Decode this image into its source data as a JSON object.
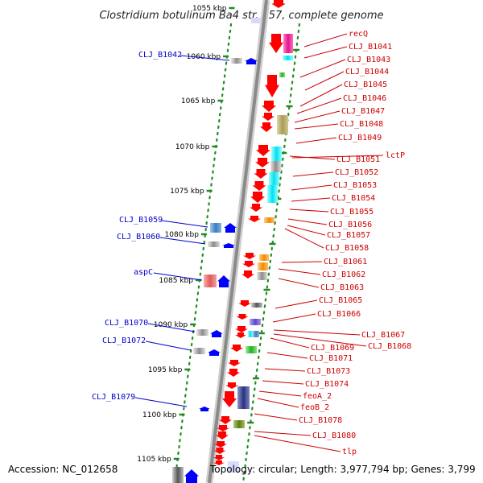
{
  "title": "Clostridium botulinum Ba4 str. 657, complete genome",
  "accession": "Accession: NC_012658",
  "topology": "Topology: circular; Length: 3,977,794 bp; Genes: 3,799",
  "kbp_ticks": [
    "1055 kbp",
    "1060 kbp",
    "1065 kbp",
    "1070 kbp",
    "1075 kbp",
    "1080 kbp",
    "1085 kbp",
    "1090 kbp",
    "1095 kbp",
    "1100 kbp",
    "1105 kbp"
  ],
  "left_labels": [
    "CLJ_B1042",
    "CLJ_B1059",
    "CLJ_B1060",
    "aspC",
    "CLJ_B1070",
    "CLJ_B1072",
    "CLJ_B1079"
  ],
  "right_labels": [
    "recQ",
    "CLJ_B1041",
    "CLJ_B1043",
    "CLJ_B1044",
    "CLJ_B1045",
    "CLJ_B1046",
    "CLJ_B1047",
    "CLJ_B1048",
    "CLJ_B1049",
    "lctP",
    "CLJ_B1051",
    "CLJ_B1052",
    "CLJ_B1053",
    "CLJ_B1054",
    "CLJ_B1055",
    "CLJ_B1056",
    "CLJ_B1057",
    "CLJ_B1058",
    "CLJ_B1061",
    "CLJ_B1062",
    "CLJ_B1063",
    "CLJ_B1065",
    "CLJ_B1066",
    "CLJ_B1067",
    "CLJ_B1068",
    "CLJ_B1069",
    "CLJ_B1071",
    "CLJ_B1073",
    "CLJ_B1074",
    "feoA_2",
    "feoB_2",
    "CLJ_B1078",
    "CLJ_B1080",
    "tlp"
  ],
  "colors": {
    "left_label": "#0000cc",
    "right_label": "#cc0000",
    "backbone": "#8a8a8a",
    "tick_dots": "#228b22",
    "gene_red": "#ff0000",
    "gene_blue": "#0000ff"
  }
}
